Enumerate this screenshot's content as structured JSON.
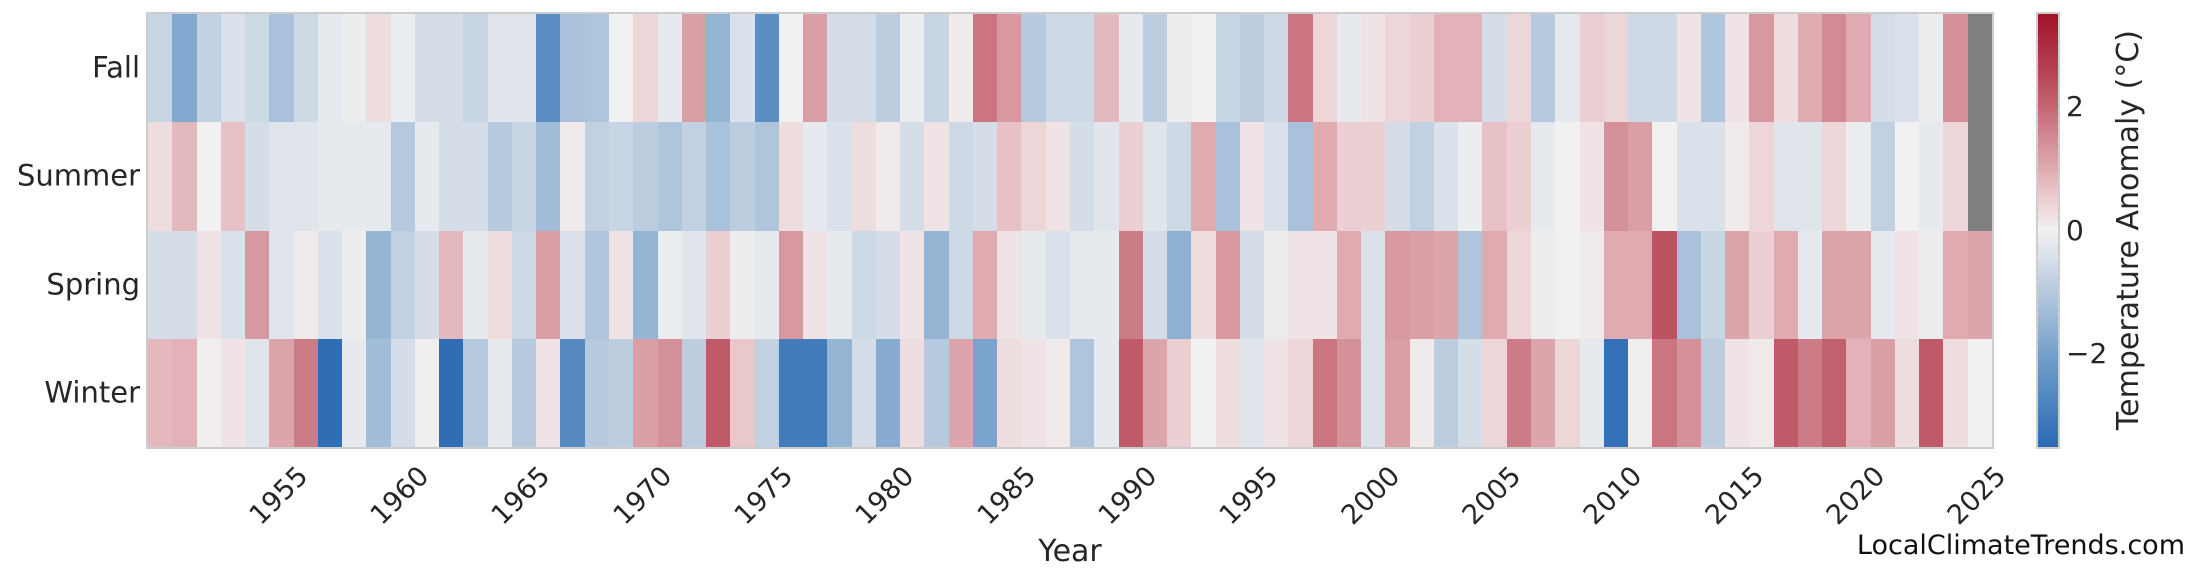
{
  "chart_data": {
    "type": "heatmap",
    "title": "",
    "xlabel": "Year",
    "ylabel": "",
    "rows": [
      "Fall",
      "Summer",
      "Spring",
      "Winter"
    ],
    "years": [
      1950,
      1951,
      1952,
      1953,
      1954,
      1955,
      1956,
      1957,
      1958,
      1959,
      1960,
      1961,
      1962,
      1963,
      1964,
      1965,
      1966,
      1967,
      1968,
      1969,
      1970,
      1971,
      1972,
      1973,
      1974,
      1975,
      1976,
      1977,
      1978,
      1979,
      1980,
      1981,
      1982,
      1983,
      1984,
      1985,
      1986,
      1987,
      1988,
      1989,
      1990,
      1991,
      1992,
      1993,
      1994,
      1995,
      1996,
      1997,
      1998,
      1999,
      2000,
      2001,
      2002,
      2003,
      2004,
      2005,
      2006,
      2007,
      2008,
      2009,
      2010,
      2011,
      2012,
      2013,
      2014,
      2015,
      2016,
      2017,
      2018,
      2019,
      2020,
      2021,
      2022,
      2023,
      2024,
      2025
    ],
    "x_tick_labels": [
      "1955",
      "1960",
      "1965",
      "1970",
      "1975",
      "1980",
      "1985",
      "1990",
      "1995",
      "2000",
      "2005",
      "2010",
      "2015",
      "2020",
      "2025"
    ],
    "series": [
      {
        "name": "Fall",
        "values": [
          -0.7,
          -1.8,
          -0.8,
          -0.4,
          -0.6,
          -1.2,
          -0.6,
          -0.2,
          -0.1,
          0.3,
          -0.1,
          -0.5,
          -0.5,
          -0.7,
          -0.3,
          -0.3,
          -2.5,
          -1.2,
          -1.1,
          0,
          0.4,
          -0.2,
          1.2,
          -1.5,
          -0.4,
          -2.5,
          0,
          1.2,
          -0.5,
          -0.5,
          -0.9,
          -0.1,
          -0.7,
          0.1,
          1.8,
          1.3,
          -1,
          -0.6,
          -0.6,
          0.8,
          -0.2,
          -0.9,
          -0.1,
          0,
          -0.7,
          -0.9,
          -0.6,
          1.8,
          0.4,
          -0.2,
          0.2,
          0.4,
          0.5,
          0.9,
          0.9,
          -0.5,
          0.4,
          -1,
          -0.2,
          0.5,
          0.4,
          -0.6,
          -0.6,
          0.2,
          -1.1,
          0.2,
          1.3,
          0.3,
          1,
          1.5,
          1,
          -0.5,
          -0.4,
          -0.1,
          1.4,
          null
        ]
      },
      {
        "name": "Summer",
        "values": [
          0.3,
          0.8,
          0,
          0.7,
          -0.5,
          -0.3,
          -0.3,
          -0.2,
          -0.2,
          -0.2,
          -1,
          -0.2,
          -0.5,
          -0.5,
          -1,
          -0.7,
          -1.3,
          0.1,
          -0.8,
          -0.7,
          -0.9,
          -1.1,
          -0.8,
          -1.2,
          -0.9,
          -1.1,
          0.3,
          -0.2,
          -0.4,
          0.3,
          0.1,
          -0.5,
          0.2,
          -0.6,
          -0.5,
          0.7,
          0.4,
          0.2,
          -0.5,
          -0.3,
          0.5,
          -0.3,
          -0.6,
          1,
          -1.2,
          0.2,
          -0.4,
          -1.2,
          1,
          0.5,
          0.5,
          -0.5,
          -0.8,
          -0.4,
          -0.1,
          0.7,
          0.5,
          -0.2,
          0,
          0.2,
          1.4,
          1.2,
          0,
          -0.4,
          -0.4,
          0.1,
          0.4,
          -0.3,
          -0.3,
          0.4,
          -0.1,
          -0.8,
          0,
          -0.2,
          0.4,
          null
        ]
      },
      {
        "name": "Spring",
        "values": [
          -0.5,
          -0.5,
          0.2,
          -0.4,
          1.3,
          -0.3,
          0.1,
          -0.4,
          -0.1,
          -1.5,
          -0.8,
          -0.5,
          0.8,
          -0.2,
          0.3,
          -0.6,
          1.2,
          -0.4,
          -1.1,
          0.2,
          -1.5,
          -0.1,
          -0.3,
          0.5,
          -0.1,
          -0.2,
          1.3,
          0.2,
          -0.2,
          -0.6,
          -0.5,
          0.2,
          -1.5,
          -0.6,
          1,
          0.2,
          -0.2,
          -0.4,
          -0.2,
          -0.2,
          1.7,
          -0.5,
          -1.6,
          0.3,
          1.3,
          -0.5,
          -0.1,
          0.2,
          0.2,
          1,
          -0.4,
          1.3,
          1.2,
          1.1,
          -1.1,
          1,
          0.4,
          -0.1,
          0,
          0.1,
          1,
          1,
          2.3,
          -1.2,
          -0.7,
          1.1,
          0.5,
          1,
          -0.2,
          1.1,
          1.1,
          -0.2,
          0.2,
          -0.1,
          1,
          1.1
        ]
      },
      {
        "name": "Winter",
        "values": [
          0.8,
          0.9,
          0.05,
          0.2,
          -0.3,
          1.1,
          1.7,
          -3.4,
          -0.2,
          -1.3,
          -0.5,
          0.05,
          -3.4,
          -1,
          -0.2,
          -1,
          0.2,
          -2.6,
          -1,
          -0.9,
          1.2,
          1.4,
          -0.9,
          2.2,
          0.6,
          -0.8,
          -3,
          -3,
          -1.5,
          -0.5,
          -1.7,
          0.3,
          -1,
          1.1,
          -1.9,
          0.3,
          0.2,
          0.1,
          -1.1,
          -0.2,
          2.2,
          1.1,
          0.5,
          0,
          0.3,
          -0.3,
          0.2,
          0.4,
          1.8,
          1.4,
          -0.4,
          1.2,
          0.1,
          -0.9,
          -0.5,
          0.4,
          1.7,
          1.1,
          0.4,
          -0.2,
          -3.3,
          0.05,
          1.8,
          1.4,
          -0.9,
          0.2,
          0.1,
          2.2,
          1.7,
          2.1,
          0.9,
          1.2,
          0.3,
          2.2,
          0.3,
          0
        ]
      }
    ],
    "vmin": -3.5,
    "vmax": 3.5,
    "colormap_stops": [
      [
        -3.5,
        "#2a6ab3"
      ],
      [
        -2,
        "#74a0cb"
      ],
      [
        -1,
        "#b6c9de"
      ],
      [
        -0.5,
        "#d4dde8"
      ],
      [
        0,
        "#f2f1f1"
      ],
      [
        0.5,
        "#eccfd2"
      ],
      [
        1,
        "#dfabb1"
      ],
      [
        1.5,
        "#d28b94"
      ],
      [
        2,
        "#c46673"
      ],
      [
        2.5,
        "#b74759"
      ],
      [
        3.5,
        "#a11228"
      ]
    ],
    "missing_value_color": "#7f7f7f",
    "text_color": "#262626",
    "border_color": "#cdcdcd",
    "colorbar": {
      "label": "Temperature Anomaly (°C)",
      "tick_labels": [
        "2",
        "0",
        "−2"
      ],
      "tick_values": [
        2,
        0,
        -2
      ]
    }
  },
  "watermark": {
    "text": "LocalClimateTrends.com"
  }
}
